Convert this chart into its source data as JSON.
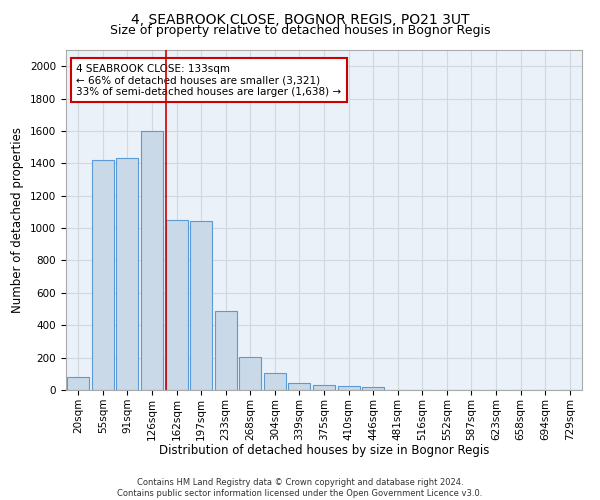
{
  "title1": "4, SEABROOK CLOSE, BOGNOR REGIS, PO21 3UT",
  "title2": "Size of property relative to detached houses in Bognor Regis",
  "xlabel": "Distribution of detached houses by size in Bognor Regis",
  "ylabel": "Number of detached properties",
  "bar_labels": [
    "20sqm",
    "55sqm",
    "91sqm",
    "126sqm",
    "162sqm",
    "197sqm",
    "233sqm",
    "268sqm",
    "304sqm",
    "339sqm",
    "375sqm",
    "410sqm",
    "446sqm",
    "481sqm",
    "516sqm",
    "552sqm",
    "587sqm",
    "623sqm",
    "658sqm",
    "694sqm",
    "729sqm"
  ],
  "bar_values": [
    80,
    1420,
    1430,
    1600,
    1050,
    1045,
    490,
    205,
    105,
    42,
    28,
    22,
    18,
    0,
    0,
    0,
    0,
    0,
    0,
    0,
    0
  ],
  "bar_color": "#c9d9e8",
  "bar_edge_color": "#5b9bd5",
  "grid_color": "#d0d8e0",
  "background_color": "#eaf1f8",
  "red_line_x": 3.55,
  "annotation_text": "4 SEABROOK CLOSE: 133sqm\n← 66% of detached houses are smaller (3,321)\n33% of semi-detached houses are larger (1,638) →",
  "annotation_box_color": "#ffffff",
  "annotation_border_color": "#cc0000",
  "ylim": [
    0,
    2100
  ],
  "yticks": [
    0,
    200,
    400,
    600,
    800,
    1000,
    1200,
    1400,
    1600,
    1800,
    2000
  ],
  "footer": "Contains HM Land Registry data © Crown copyright and database right 2024.\nContains public sector information licensed under the Open Government Licence v3.0.",
  "red_line_color": "#cc0000",
  "title1_fontsize": 10,
  "title2_fontsize": 9,
  "tick_fontsize": 7.5,
  "ylabel_fontsize": 8.5,
  "xlabel_fontsize": 8.5,
  "annotation_fontsize": 7.5
}
